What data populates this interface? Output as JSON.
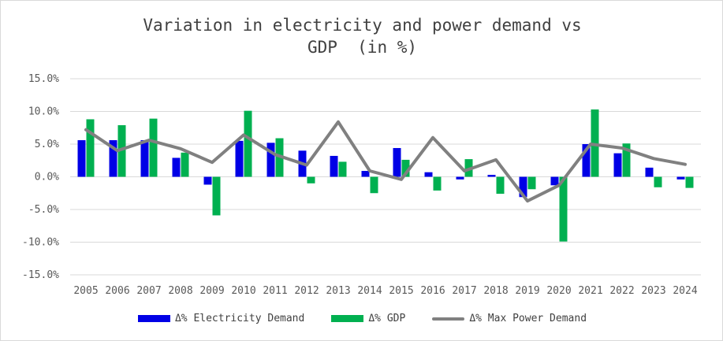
{
  "chart_data": {
    "type": "bar",
    "title_line1": "Variation in electricity and power demand vs",
    "title_line2": "GDP  (in %)",
    "categories": [
      "2005",
      "2006",
      "2007",
      "2008",
      "2009",
      "2010",
      "2011",
      "2012",
      "2013",
      "2014",
      "2015",
      "2016",
      "2017",
      "2018",
      "2019",
      "2020",
      "2021",
      "2022",
      "2023",
      "2024"
    ],
    "series": [
      {
        "name": "Δ% Electricity Demand",
        "kind": "bar",
        "color": "#0000e6",
        "values": [
          5.6,
          5.6,
          5.6,
          2.9,
          -1.2,
          5.5,
          5.2,
          4.0,
          3.2,
          0.9,
          4.4,
          0.7,
          -0.4,
          0.3,
          -3.1,
          -1.3,
          5.0,
          3.6,
          1.4,
          -0.4
        ]
      },
      {
        "name": "Δ% GDP",
        "kind": "bar",
        "color": "#00b050",
        "values": [
          8.8,
          7.9,
          8.9,
          3.7,
          -5.9,
          10.1,
          5.9,
          -1.0,
          2.3,
          -2.5,
          2.6,
          -2.1,
          2.7,
          -2.6,
          -1.9,
          -9.9,
          10.3,
          5.1,
          -1.6,
          -1.7
        ]
      },
      {
        "name": "Δ% Max Power Demand",
        "kind": "line",
        "color": "#808080",
        "values": [
          7.2,
          4.0,
          5.6,
          4.3,
          2.2,
          6.4,
          3.4,
          1.8,
          8.4,
          0.9,
          -0.4,
          6.0,
          0.9,
          2.6,
          -3.7,
          -1.3,
          5.0,
          4.4,
          2.8,
          1.9
        ]
      }
    ],
    "ylim": [
      -15,
      15
    ],
    "yticks": [
      "-15.0%",
      "-10.0%",
      "-5.0%",
      "0.0%",
      "5.0%",
      "10.0%",
      "15.0%"
    ],
    "ytick_values": [
      -15,
      -10,
      -5,
      0,
      5,
      10,
      15
    ],
    "xlabel": "",
    "ylabel": "",
    "grid": true,
    "legend_position": "bottom"
  }
}
